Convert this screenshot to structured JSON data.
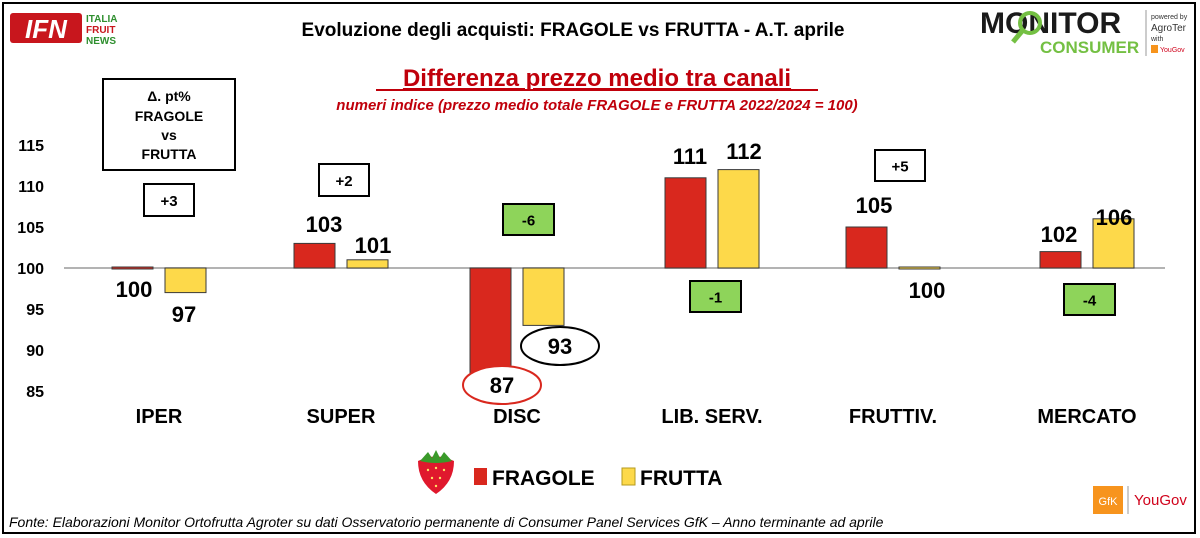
{
  "header": {
    "logo_left": {
      "mark": "IFN",
      "line1": "ITALIA",
      "line2": "FRUIT",
      "line3": "NEWS"
    },
    "title": "Evoluzione degli acquisti: FRAGOLE vs FRUTTA  - A.T. aprile",
    "logo_right": {
      "line1": "MONITOR",
      "line2": "CONSUMER",
      "powered1": "powered by",
      "powered2": "AgroTer",
      "powered3": "with",
      "powered4": "YouGov"
    }
  },
  "delta_box": {
    "line1": "Δ. pt%",
    "line2": "FRAGOLE",
    "line3": "vs",
    "line4": "FRUTTA"
  },
  "footer": {
    "source": "Fonte: Elaborazioni Monitor Ortofrutta Agroter su dati Osservatorio permanente di Consumer Panel Services GfK  – Anno terminante ad aprile",
    "logo_gfk": "GfK",
    "logo_yougov": "YouGov"
  },
  "colors": {
    "fragole": "#d9281e",
    "frutta": "#fdd94a",
    "title_red": "#c0000b",
    "delta_green": "#8ed45a",
    "positive_box": "#ffffff"
  },
  "chart_data": {
    "type": "bar",
    "title": "Differenza prezzo medio tra canali",
    "subtitle": "numeri indice (prezzo medio totale FRAGOLE  e FRUTTA 2022/2024 = 100)",
    "categories": [
      "IPER",
      "SUPER",
      "DISC",
      "LIB. SERV.",
      "FRUTTIV.",
      "MERCATO"
    ],
    "baseline": 100,
    "series": [
      {
        "name": "FRAGOLE",
        "values": [
          100,
          103,
          87,
          111,
          105,
          102
        ],
        "labels": [
          "100",
          "103",
          "87",
          "111",
          "105",
          "102"
        ]
      },
      {
        "name": "FRUTTA",
        "values": [
          97,
          101,
          93,
          112,
          100,
          106
        ],
        "labels": [
          "97",
          "101",
          "93",
          "112",
          "100",
          "106"
        ]
      }
    ],
    "deltas": [
      "+3",
      "+2",
      "-6",
      "-1",
      "+5",
      "-4"
    ],
    "yticks": [
      "115",
      "110",
      "105",
      "100",
      "95",
      "90",
      "85"
    ],
    "ylim": [
      84,
      116
    ],
    "legend": "bottom-center",
    "grid": false
  }
}
